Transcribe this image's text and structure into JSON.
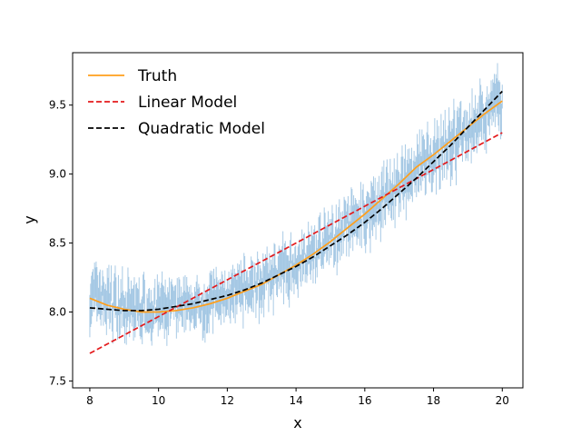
{
  "chart_data": {
    "type": "line",
    "title": "",
    "xlabel": "x",
    "ylabel": "y",
    "xlim": [
      7.5,
      20.6
    ],
    "ylim": [
      7.45,
      9.88
    ],
    "xticks": [
      8,
      10,
      12,
      14,
      16,
      18,
      20
    ],
    "yticks": [
      7.5,
      8.0,
      8.5,
      9.0,
      9.5
    ],
    "xtick_labels": [
      "8",
      "10",
      "12",
      "14",
      "16",
      "18",
      "20"
    ],
    "ytick_labels": [
      "7.5",
      "8.0",
      "8.5",
      "9.0",
      "9.5"
    ],
    "grid": false,
    "legend_position": "upper left",
    "series": [
      {
        "name": "Truth",
        "style": "solid",
        "color": "#ff9f1c",
        "x": [
          8,
          8.5,
          9,
          9.5,
          10,
          10.5,
          11,
          11.5,
          12,
          12.5,
          13,
          13.5,
          14,
          14.5,
          15,
          15.5,
          16,
          16.5,
          17,
          17.5,
          18,
          18.5,
          19,
          19.5,
          20
        ],
        "y": [
          8.1,
          8.05,
          8.02,
          8.0,
          8.0,
          8.01,
          8.03,
          8.06,
          8.1,
          8.15,
          8.2,
          8.27,
          8.34,
          8.42,
          8.51,
          8.61,
          8.71,
          8.82,
          8.93,
          9.05,
          9.14,
          9.24,
          9.34,
          9.44,
          9.53
        ]
      },
      {
        "name": "Linear Model",
        "style": "dashed",
        "color": "#e41a1c",
        "x": [
          8,
          20
        ],
        "y": [
          7.7,
          9.3
        ]
      },
      {
        "name": "Quadratic Model",
        "style": "dashed",
        "color": "#000000",
        "x": [
          8,
          8.5,
          9,
          9.5,
          10,
          10.5,
          11,
          11.5,
          12,
          12.5,
          13,
          13.5,
          14,
          14.5,
          15,
          15.5,
          16,
          16.5,
          17,
          17.5,
          18,
          18.5,
          19,
          19.5,
          20
        ],
        "y": [
          8.03,
          8.02,
          8.01,
          8.01,
          8.02,
          8.04,
          8.06,
          8.09,
          8.12,
          8.16,
          8.21,
          8.27,
          8.33,
          8.4,
          8.48,
          8.56,
          8.65,
          8.75,
          8.86,
          8.97,
          9.09,
          9.21,
          9.34,
          9.47,
          9.6
        ]
      }
    ],
    "noise_band": {
      "color": "#8bb8dc",
      "description_free": true,
      "x": [
        8,
        9,
        10,
        11,
        12,
        13,
        14,
        15,
        16,
        17,
        18,
        19,
        20
      ],
      "low": [
        7.88,
        7.8,
        7.78,
        7.82,
        7.88,
        7.98,
        8.12,
        8.28,
        8.46,
        8.66,
        8.86,
        9.06,
        9.28
      ],
      "high": [
        8.38,
        8.28,
        8.25,
        8.25,
        8.35,
        8.45,
        8.58,
        8.75,
        8.95,
        9.15,
        9.38,
        9.58,
        9.78
      ]
    }
  },
  "style": {
    "axes_color": "#000000",
    "background": "#ffffff"
  }
}
